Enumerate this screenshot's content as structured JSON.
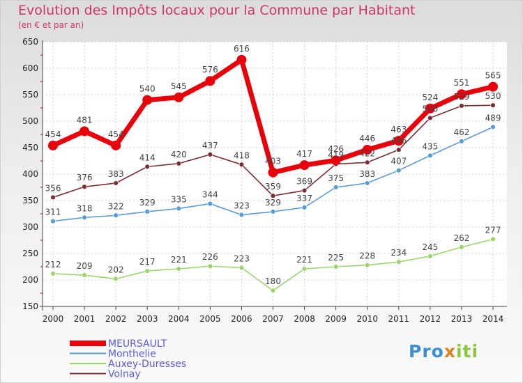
{
  "header": {
    "title": "Evolution des Impôts locaux pour la Commune par Habitant",
    "subtitle": "(en € et par an)"
  },
  "brand": {
    "part1": "Pro",
    "part2": "x",
    "part3": "iti"
  },
  "chart_data": {
    "type": "line",
    "title": "Evolution des Impôts locaux pour la Commune par Habitant",
    "subtitle": "(en € et par an)",
    "xlabel": "",
    "ylabel": "",
    "ylim": [
      150,
      650
    ],
    "yticks": [
      150,
      200,
      250,
      300,
      350,
      400,
      450,
      500,
      550,
      600,
      650
    ],
    "grid": true,
    "legend_position": "bottom-left",
    "categories": [
      "2000",
      "2001",
      "2002",
      "2003",
      "2004",
      "2005",
      "2006",
      "2007",
      "2008",
      "2009",
      "2010",
      "2011",
      "2012",
      "2013",
      "2014"
    ],
    "series": [
      {
        "name": "MEURSAULT",
        "color": "#e8000b",
        "values": [
          454,
          481,
          454,
          540,
          545,
          576,
          616,
          403,
          417,
          426,
          446,
          463,
          524,
          551,
          565
        ]
      },
      {
        "name": "Monthelie",
        "color": "#5b9bd5",
        "values": [
          311,
          318,
          322,
          329,
          335,
          344,
          323,
          329,
          337,
          375,
          383,
          407,
          435,
          462,
          489
        ]
      },
      {
        "name": "Auxey-Duresses",
        "color": "#9bd56b",
        "values": [
          212,
          209,
          202,
          217,
          221,
          226,
          223,
          180,
          221,
          225,
          228,
          234,
          245,
          262,
          277
        ]
      },
      {
        "name": "Volnay",
        "color": "#7a2e32",
        "values": [
          356,
          376,
          383,
          414,
          420,
          437,
          418,
          359,
          369,
          419,
          422,
          446,
          506,
          529,
          530
        ]
      }
    ]
  }
}
